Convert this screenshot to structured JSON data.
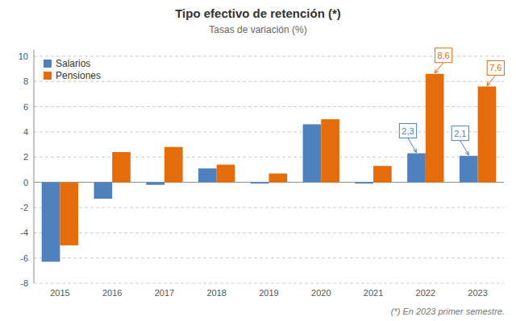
{
  "chart_data": {
    "type": "bar",
    "title": "Tipo efectivo de retención (*)",
    "subtitle": "Tasas de variación (%)",
    "footnote": "(*) En 2023 primer semestre.",
    "categories": [
      "2015",
      "2016",
      "2017",
      "2018",
      "2019",
      "2020",
      "2021",
      "2022",
      "2023"
    ],
    "series": [
      {
        "name": "Salarios",
        "color": "#4E81BD",
        "values": [
          -6.3,
          -1.3,
          -0.2,
          1.1,
          -0.1,
          4.6,
          -0.1,
          2.3,
          2.1
        ],
        "value_labels": [
          null,
          null,
          null,
          null,
          null,
          null,
          null,
          "2,3",
          "2,1"
        ]
      },
      {
        "name": "Pensiones",
        "color": "#E46C0A",
        "values": [
          -5.0,
          2.4,
          2.8,
          1.4,
          0.7,
          5.0,
          1.3,
          8.6,
          7.6
        ],
        "value_labels": [
          null,
          null,
          null,
          null,
          null,
          null,
          null,
          "8,6",
          "7,6"
        ]
      }
    ],
    "ylim": [
      -8,
      10.5
    ],
    "yticks": [
      -8,
      -6,
      -4,
      -2,
      0,
      2,
      4,
      6,
      8,
      10
    ],
    "grid": true,
    "legend": "upper left"
  }
}
